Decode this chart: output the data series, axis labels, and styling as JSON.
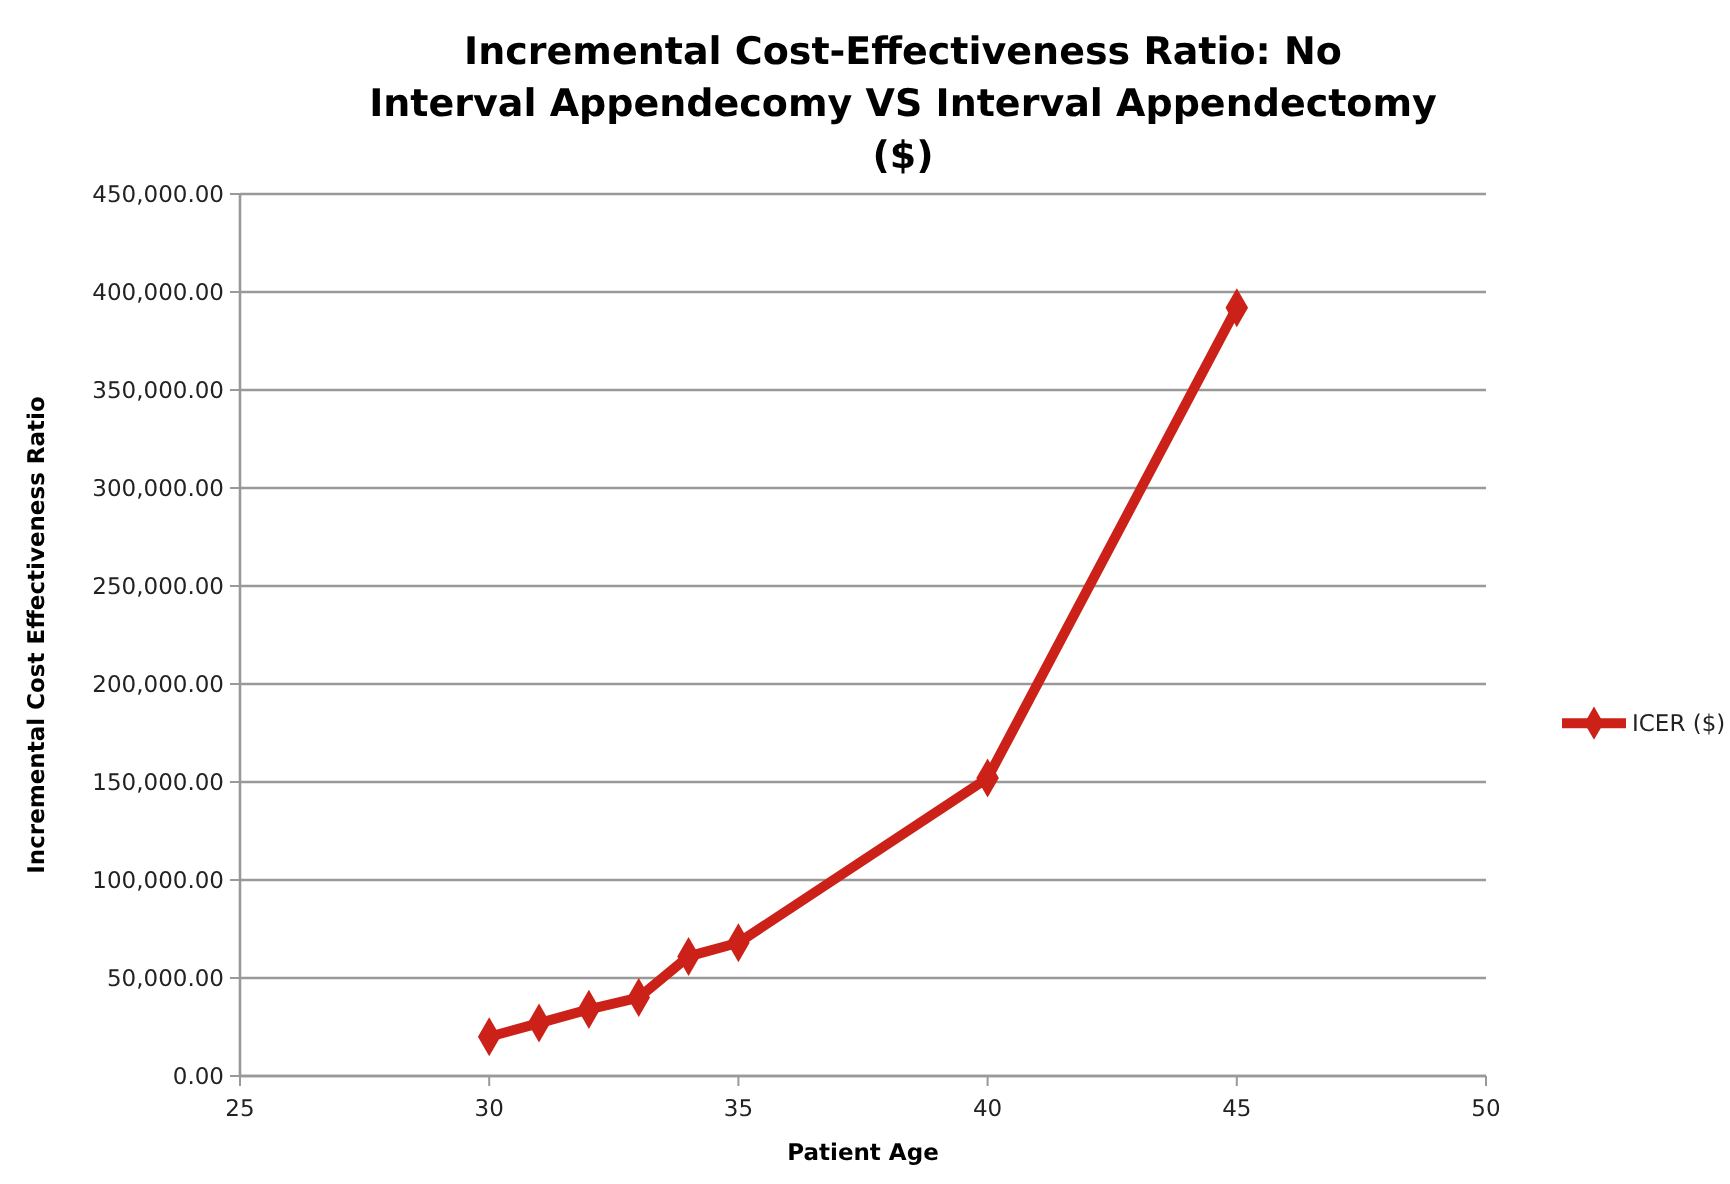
{
  "chart_data": {
    "type": "line",
    "title": "Incremental Cost-Effectiveness Ratio: No Interval Appendecomy VS Interval Appendectomy ($)",
    "xlabel": "Patient Age",
    "ylabel": "Incremental Cost Effectiveness Ratio",
    "x": [
      30,
      31,
      32,
      33,
      34,
      35,
      40,
      45
    ],
    "series": [
      {
        "name": "ICER ($)",
        "color": "#cc2118",
        "values": [
          20000,
          27000,
          34000,
          40000,
          61000,
          68000,
          152000,
          392000
        ]
      }
    ],
    "xlim": [
      25,
      50
    ],
    "xticks": [
      25,
      30,
      35,
      40,
      45,
      50
    ],
    "ylim": [
      0,
      450000
    ],
    "yticks": [
      {
        "value": 0,
        "label": "0.00"
      },
      {
        "value": 50000,
        "label": "50,000.00"
      },
      {
        "value": 100000,
        "label": "100,000.00"
      },
      {
        "value": 150000,
        "label": "150,000.00"
      },
      {
        "value": 200000,
        "label": "200,000.00"
      },
      {
        "value": 250000,
        "label": "250,000.00"
      },
      {
        "value": 300000,
        "label": "300,000.00"
      },
      {
        "value": 350000,
        "label": "350,000.00"
      },
      {
        "value": 400000,
        "label": "400,000.00"
      },
      {
        "value": 450000,
        "label": "450,000.00"
      }
    ],
    "grid": "y",
    "legend": "right",
    "marker": "diamond",
    "line_style": "solid"
  }
}
